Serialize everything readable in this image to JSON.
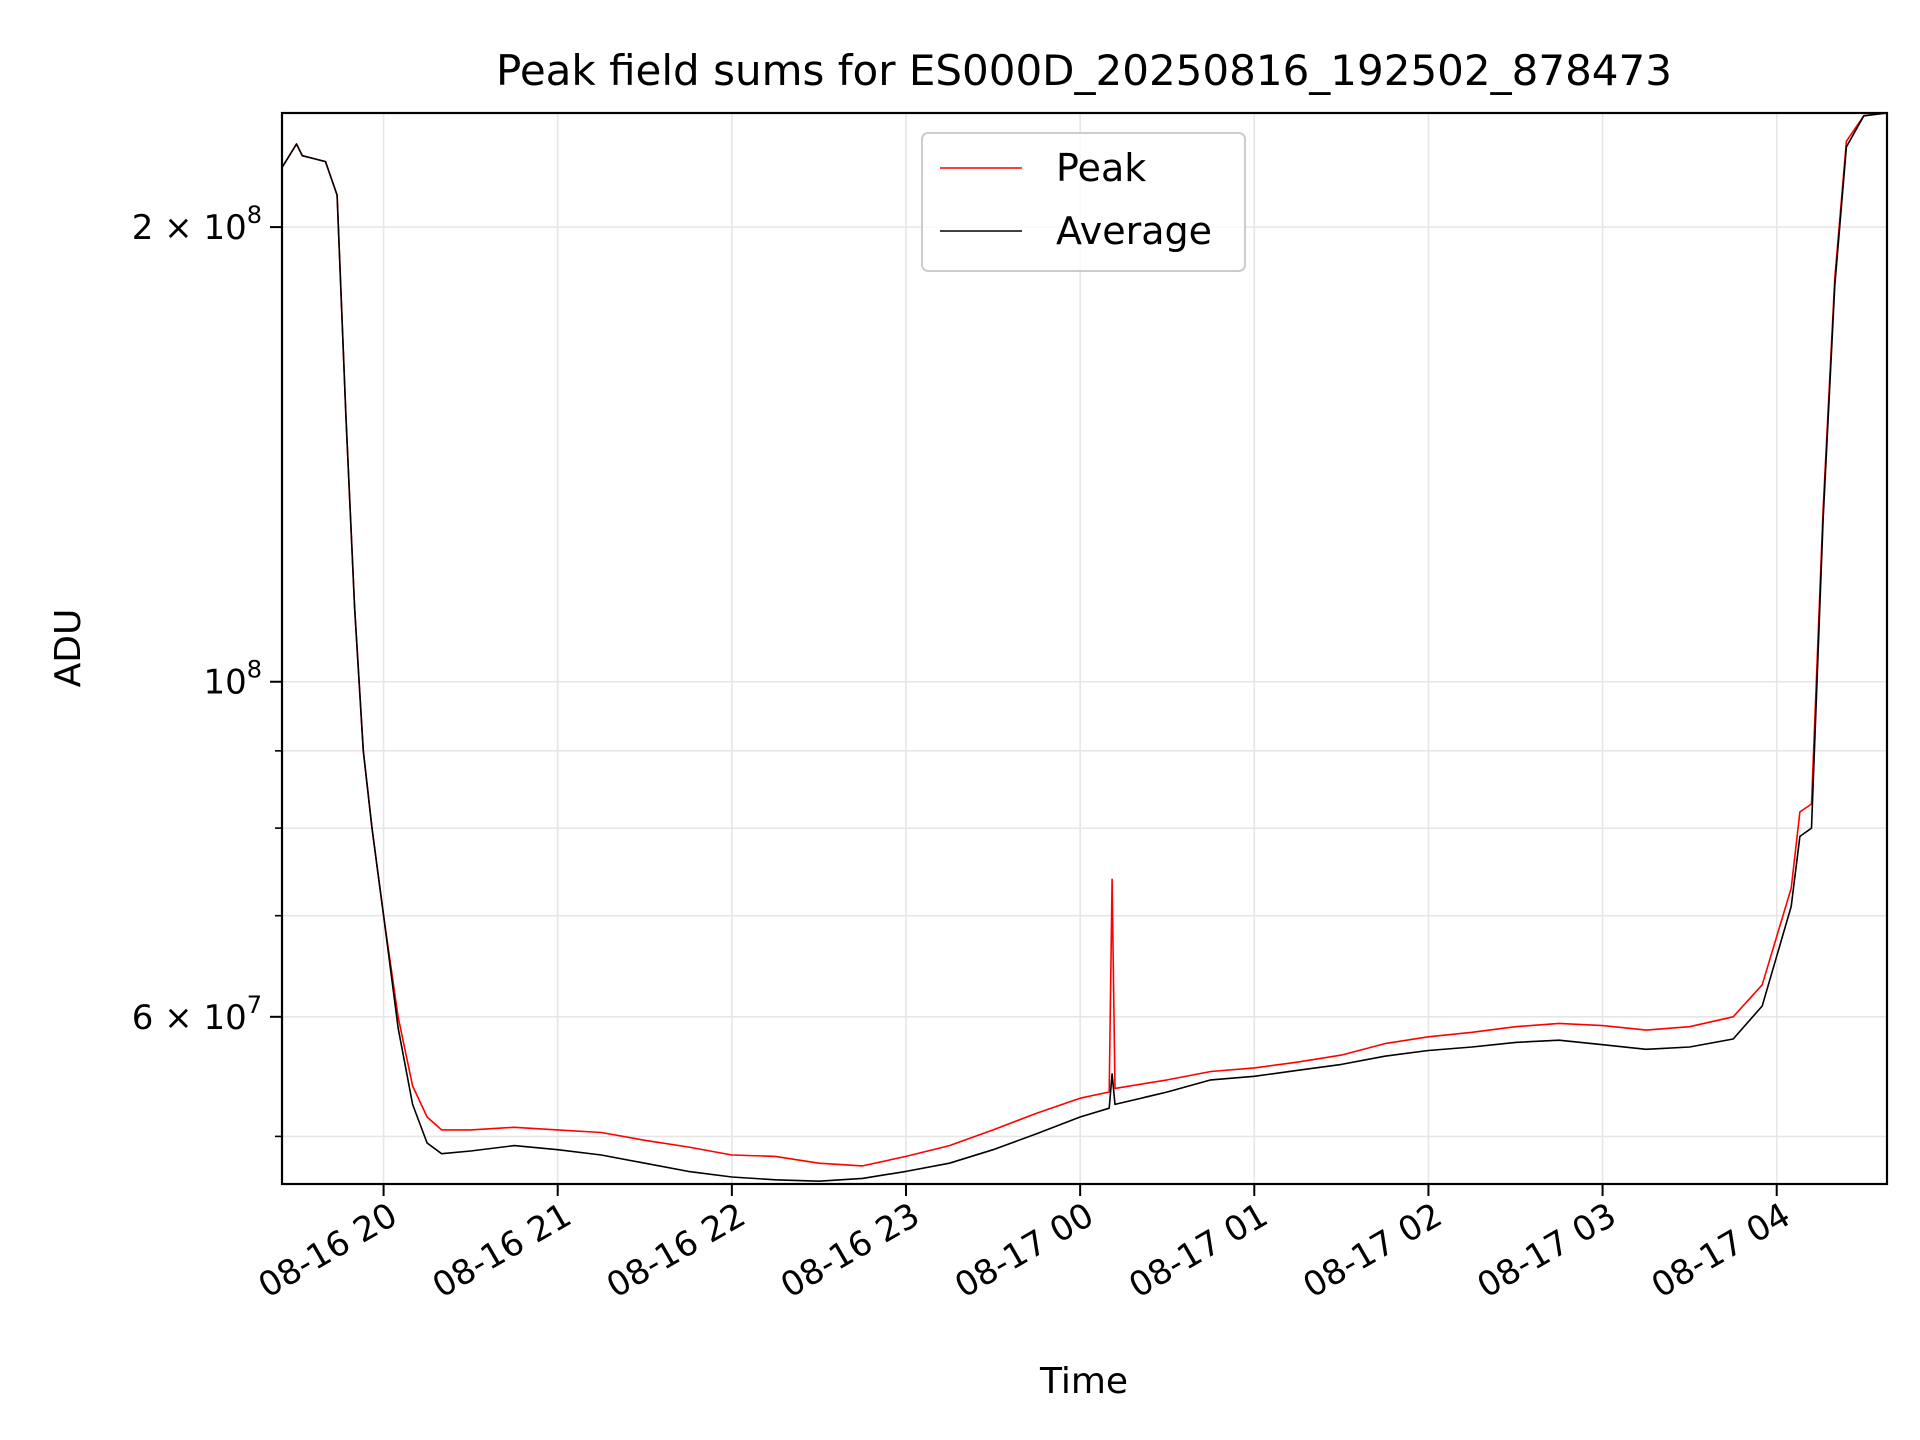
{
  "chart_data": {
    "type": "line",
    "title": "Peak field sums for ES000D_20250816_192502_878473",
    "xlabel": "Time",
    "ylabel": "ADU",
    "yscale": "log",
    "grid": true,
    "legend_position": "top-center",
    "xlim": [
      "2025-08-16 19:25",
      "2025-08-17 04:38"
    ],
    "ylim": [
      46500000,
      238000000
    ],
    "x_ticks": [
      {
        "value": "2025-08-16 20:00",
        "label": "08-16 20"
      },
      {
        "value": "2025-08-16 21:00",
        "label": "08-16 21"
      },
      {
        "value": "2025-08-16 22:00",
        "label": "08-16 22"
      },
      {
        "value": "2025-08-16 23:00",
        "label": "08-16 23"
      },
      {
        "value": "2025-08-17 00:00",
        "label": "08-17 00"
      },
      {
        "value": "2025-08-17 01:00",
        "label": "08-17 01"
      },
      {
        "value": "2025-08-17 02:00",
        "label": "08-17 02"
      },
      {
        "value": "2025-08-17 03:00",
        "label": "08-17 03"
      },
      {
        "value": "2025-08-17 04:00",
        "label": "08-17 04"
      }
    ],
    "y_ticks": [
      {
        "value": 200000000,
        "base": "2 × 10",
        "exp": "8"
      },
      {
        "value": 100000000,
        "base": "10",
        "exp": "8"
      },
      {
        "value": 60000000,
        "base": "6 × 10",
        "exp": "7"
      }
    ],
    "y_minor_ticks": [
      50000000,
      70000000,
      80000000,
      90000000
    ],
    "series": [
      {
        "name": "Peak",
        "color": "#ff0000",
        "x": [
          "2025-08-16 19:25",
          "2025-08-16 19:30",
          "2025-08-16 19:32",
          "2025-08-16 19:36",
          "2025-08-16 19:40",
          "2025-08-16 19:44",
          "2025-08-16 19:47",
          "2025-08-16 19:50",
          "2025-08-16 19:53",
          "2025-08-16 19:56",
          "2025-08-16 20:00",
          "2025-08-16 20:05",
          "2025-08-16 20:10",
          "2025-08-16 20:15",
          "2025-08-16 20:20",
          "2025-08-16 20:30",
          "2025-08-16 20:45",
          "2025-08-16 21:00",
          "2025-08-16 21:15",
          "2025-08-16 21:30",
          "2025-08-16 21:45",
          "2025-08-16 22:00",
          "2025-08-16 22:15",
          "2025-08-16 22:30",
          "2025-08-16 22:45",
          "2025-08-16 23:00",
          "2025-08-16 23:15",
          "2025-08-16 23:30",
          "2025-08-16 23:45",
          "2025-08-17 00:00",
          "2025-08-17 00:10",
          "2025-08-17 00:11",
          "2025-08-17 00:12",
          "2025-08-17 00:30",
          "2025-08-17 00:45",
          "2025-08-17 01:00",
          "2025-08-17 01:15",
          "2025-08-17 01:30",
          "2025-08-17 01:45",
          "2025-08-17 02:00",
          "2025-08-17 02:15",
          "2025-08-17 02:30",
          "2025-08-17 02:45",
          "2025-08-17 03:00",
          "2025-08-17 03:15",
          "2025-08-17 03:30",
          "2025-08-17 03:45",
          "2025-08-17 03:55",
          "2025-08-17 04:05",
          "2025-08-17 04:08",
          "2025-08-17 04:12",
          "2025-08-17 04:16",
          "2025-08-17 04:20",
          "2025-08-17 04:24",
          "2025-08-17 04:30",
          "2025-08-17 04:38"
        ],
        "y": [
          219000000,
          227000000,
          223000000,
          222000000,
          221000000,
          210000000,
          150000000,
          112000000,
          90000000,
          80000000,
          70000000,
          60000000,
          54000000,
          51500000,
          50500000,
          50500000,
          50700000,
          50500000,
          50300000,
          49700000,
          49200000,
          48600000,
          48500000,
          48000000,
          47800000,
          48500000,
          49300000,
          50500000,
          51800000,
          53000000,
          53500000,
          74000000,
          53800000,
          54500000,
          55200000,
          55500000,
          56000000,
          56600000,
          57600000,
          58200000,
          58600000,
          59100000,
          59400000,
          59200000,
          58800000,
          59100000,
          60000000,
          63000000,
          73000000,
          82000000,
          83000000,
          130000000,
          185000000,
          228000000,
          237000000,
          238000000
        ]
      },
      {
        "name": "Average",
        "color": "#000000",
        "x": [
          "2025-08-16 19:25",
          "2025-08-16 19:30",
          "2025-08-16 19:32",
          "2025-08-16 19:36",
          "2025-08-16 19:40",
          "2025-08-16 19:44",
          "2025-08-16 19:47",
          "2025-08-16 19:50",
          "2025-08-16 19:53",
          "2025-08-16 19:56",
          "2025-08-16 20:00",
          "2025-08-16 20:05",
          "2025-08-16 20:10",
          "2025-08-16 20:15",
          "2025-08-16 20:20",
          "2025-08-16 20:30",
          "2025-08-16 20:45",
          "2025-08-16 21:00",
          "2025-08-16 21:15",
          "2025-08-16 21:30",
          "2025-08-16 21:45",
          "2025-08-16 22:00",
          "2025-08-16 22:15",
          "2025-08-16 22:30",
          "2025-08-16 22:45",
          "2025-08-16 23:00",
          "2025-08-16 23:15",
          "2025-08-16 23:30",
          "2025-08-16 23:45",
          "2025-08-17 00:00",
          "2025-08-17 00:10",
          "2025-08-17 00:11",
          "2025-08-17 00:12",
          "2025-08-17 00:30",
          "2025-08-17 00:45",
          "2025-08-17 01:00",
          "2025-08-17 01:15",
          "2025-08-17 01:30",
          "2025-08-17 01:45",
          "2025-08-17 02:00",
          "2025-08-17 02:15",
          "2025-08-17 02:30",
          "2025-08-17 02:45",
          "2025-08-17 03:00",
          "2025-08-17 03:15",
          "2025-08-17 03:30",
          "2025-08-17 03:45",
          "2025-08-17 03:55",
          "2025-08-17 04:05",
          "2025-08-17 04:08",
          "2025-08-17 04:12",
          "2025-08-17 04:16",
          "2025-08-17 04:20",
          "2025-08-17 04:24",
          "2025-08-17 04:30",
          "2025-08-17 04:38"
        ],
        "y": [
          219000000,
          227000000,
          223000000,
          222000000,
          221000000,
          210000000,
          150000000,
          112000000,
          90000000,
          80000000,
          70000000,
          59000000,
          52500000,
          49500000,
          48700000,
          48900000,
          49300000,
          49000000,
          48600000,
          48000000,
          47400000,
          47000000,
          46800000,
          46700000,
          46900000,
          47400000,
          48000000,
          49000000,
          50200000,
          51500000,
          52200000,
          55000000,
          52500000,
          53500000,
          54500000,
          54800000,
          55300000,
          55800000,
          56500000,
          57000000,
          57300000,
          57700000,
          57900000,
          57500000,
          57100000,
          57300000,
          58000000,
          61000000,
          71000000,
          79000000,
          80000000,
          128000000,
          183000000,
          226000000,
          237000000,
          238000000
        ]
      }
    ]
  }
}
